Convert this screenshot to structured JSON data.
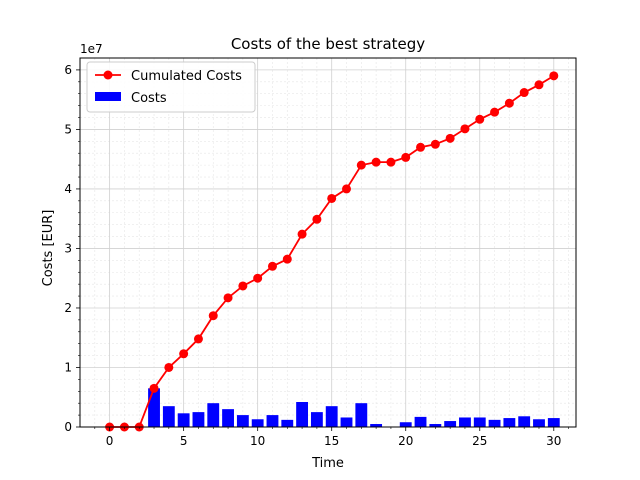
{
  "chart_data": {
    "type": "bar+line",
    "title": "Costs of the best strategy",
    "xlabel": "Time",
    "ylabel": "Costs [EUR]",
    "y_offset_text": "1e7",
    "y_scale": 10000000,
    "xlim": [
      -2,
      31.5
    ],
    "ylim": [
      0,
      62000000
    ],
    "xticks": [
      0,
      5,
      10,
      15,
      20,
      25,
      30
    ],
    "yticks": [
      0,
      10000000,
      20000000,
      30000000,
      40000000,
      50000000,
      60000000
    ],
    "ytick_labels": [
      "0",
      "1",
      "2",
      "3",
      "4",
      "5",
      "6"
    ],
    "grid": true,
    "minor_grid": true,
    "legend_position": "top-left",
    "series": [
      {
        "name": "Cumulated Costs",
        "kind": "line",
        "color": "#ff0000",
        "marker": "circle",
        "x": [
          0,
          1,
          2,
          3,
          4,
          5,
          6,
          7,
          8,
          9,
          10,
          11,
          12,
          13,
          14,
          15,
          16,
          17,
          18,
          19,
          20,
          21,
          22,
          23,
          24,
          25,
          26,
          27,
          28,
          29,
          30
        ],
        "y": [
          0,
          0,
          0,
          6500000,
          10000000,
          12300000,
          14800000,
          18700000,
          21700000,
          23700000,
          25000000,
          27000000,
          28200000,
          32400000,
          34900000,
          38400000,
          40000000,
          44000000,
          44500000,
          44500000,
          45300000,
          47000000,
          47500000,
          48500000,
          50100000,
          51700000,
          52900000,
          54400000,
          56200000,
          57500000,
          59000000
        ]
      },
      {
        "name": "Costs",
        "kind": "bar",
        "color": "#0000ff",
        "x": [
          3,
          4,
          5,
          6,
          7,
          8,
          9,
          10,
          11,
          12,
          13,
          14,
          15,
          16,
          17,
          18,
          19,
          20,
          21,
          22,
          23,
          24,
          25,
          26,
          27,
          28,
          29,
          30
        ],
        "y": [
          6500000,
          3500000,
          2300000,
          2500000,
          4000000,
          3000000,
          2000000,
          1300000,
          2000000,
          1200000,
          4200000,
          2500000,
          3500000,
          1600000,
          4000000,
          500000,
          0,
          800000,
          1700000,
          500000,
          1000000,
          1600000,
          1600000,
          1200000,
          1500000,
          1800000,
          1300000,
          1500000
        ]
      }
    ]
  }
}
